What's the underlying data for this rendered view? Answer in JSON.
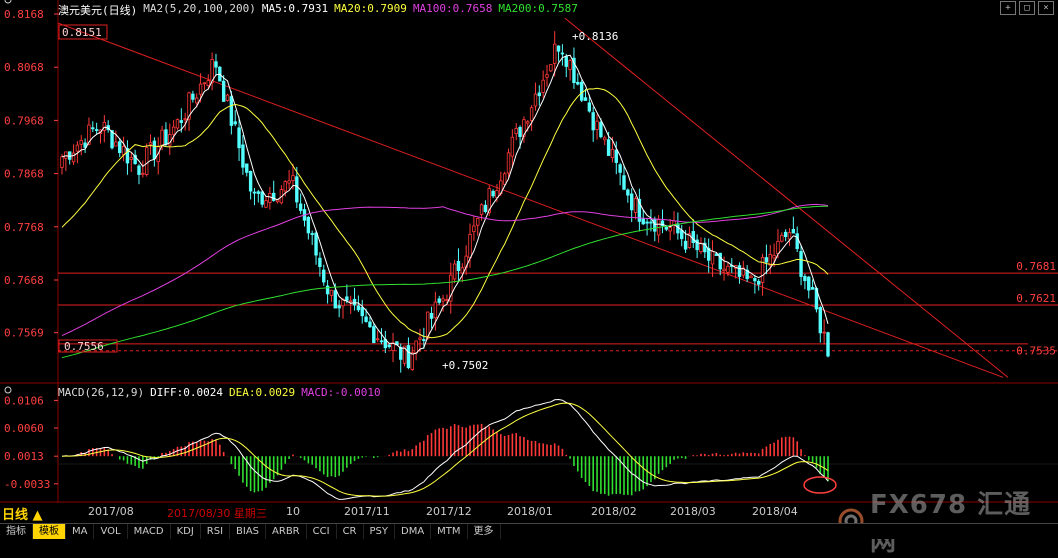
{
  "header": {
    "title": "澳元美元(日线)",
    "ma_params": "MA2(5,20,100,200)",
    "ma5": "MA5:0.7931",
    "ma20": "MA20:0.7909",
    "ma100": "MA100:0.7658",
    "ma200": "MA200:0.7587"
  },
  "colors": {
    "up": "#ff3838",
    "down": "#54ffff",
    "ma5": "#ffffff",
    "ma20": "#ffff40",
    "ma100": "#e040e0",
    "ma200": "#30e030",
    "grid": "#8b0000",
    "axis_text": "#ff4040",
    "trend": "#e02020"
  },
  "price_axis": {
    "labels": [
      "0.8168",
      "0.8068",
      "0.7968",
      "0.7868",
      "0.7768",
      "0.7668",
      "0.7569"
    ],
    "min": 0.748,
    "max": 0.8168
  },
  "annotations": {
    "high": "0.8136",
    "low": "0.7502",
    "left_top": "0.8151",
    "left_bottom": "0.7556",
    "right_levels": [
      "0.7681",
      "0.7621",
      "0.7535"
    ]
  },
  "macd": {
    "params": "MACD(26,12,9)",
    "diff": "DIFF:0.0024",
    "dea": "DEA:0.0029",
    "macd": "MACD:-0.0010",
    "axis_labels": [
      "0.0106",
      "0.0060",
      "0.0013",
      "-0.0033"
    ],
    "min": -0.006,
    "max": 0.011
  },
  "x_axis": {
    "period": "日线",
    "labels": [
      "2017/08",
      "2017/11",
      "2017/12",
      "2018/01",
      "2018/02",
      "2018/03",
      "2018/04"
    ],
    "cursor_date": "2017/08/30 星期三",
    "cursor_tail": "10"
  },
  "tabs": [
    "指标",
    "模板",
    "MA",
    "VOL",
    "MACD",
    "KDJ",
    "RSI",
    "BIAS",
    "ARBR",
    "CCI",
    "CR",
    "PSY",
    "DMA",
    "MTM",
    "更多"
  ],
  "logo": {
    "text": "FX678 汇通网"
  },
  "chart_data": {
    "type": "candlestick",
    "title": "澳元美元(日线)",
    "x": [
      "2017/08",
      "2017/11",
      "2017/12",
      "2018/01",
      "2018/02",
      "2018/03",
      "2018/04"
    ],
    "anchors": [
      {
        "date": "2017/07",
        "close": 0.79
      },
      {
        "date": "2017/07 end",
        "close": 0.796
      },
      {
        "date": "2017/08",
        "close": 0.788
      },
      {
        "date": "2017/09",
        "close": 0.796
      },
      {
        "date": "2017/09 mid",
        "close": 0.808
      },
      {
        "date": "2017/10",
        "close": 0.782
      },
      {
        "date": "2017/10 mid",
        "close": 0.785
      },
      {
        "date": "2017/11",
        "close": 0.764
      },
      {
        "date": "2017/11 mid",
        "close": 0.758
      },
      {
        "date": "2017/12",
        "close": 0.752
      },
      {
        "date": "2017/12 mid",
        "close": 0.764
      },
      {
        "date": "2018/01",
        "close": 0.78
      },
      {
        "date": "2018/01 mid",
        "close": 0.796
      },
      {
        "date": "2018/01 end",
        "close": 0.812
      },
      {
        "date": "2018/02",
        "close": 0.795
      },
      {
        "date": "2018/02 mid",
        "close": 0.78
      },
      {
        "date": "2018/03",
        "close": 0.776
      },
      {
        "date": "2018/03 mid",
        "close": 0.77
      },
      {
        "date": "2018/04",
        "close": 0.766
      },
      {
        "date": "2018/04 mid",
        "close": 0.776
      },
      {
        "date": "2018/04 end",
        "close": 0.754
      }
    ]
  }
}
